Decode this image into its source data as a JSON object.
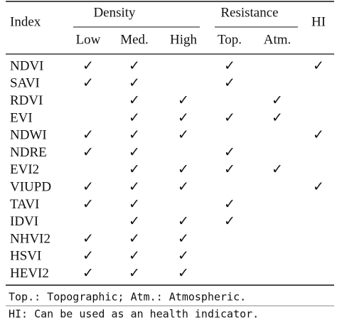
{
  "header": {
    "index": "Index",
    "groups": [
      {
        "label": "Density",
        "columns": [
          "Low",
          "Med.",
          "High"
        ]
      },
      {
        "label": "Resistance",
        "columns": [
          "Top.",
          "Atm."
        ]
      }
    ],
    "hi": "HI"
  },
  "rows": [
    {
      "index": "NDVI",
      "cells": [
        "✓",
        "✓",
        null,
        "✓",
        null,
        "✓"
      ]
    },
    {
      "index": "SAVI",
      "cells": [
        "✓",
        "✓",
        null,
        "✓",
        null,
        null
      ]
    },
    {
      "index": "RDVI",
      "cells": [
        null,
        "✓",
        "✓",
        null,
        "✓",
        null
      ]
    },
    {
      "index": "EVI",
      "cells": [
        null,
        "✓",
        "✓",
        "✓",
        "✓",
        null
      ]
    },
    {
      "index": "NDWI",
      "cells": [
        "✓",
        "✓",
        "✓",
        null,
        null,
        "✓"
      ]
    },
    {
      "index": "NDRE",
      "cells": [
        "✓",
        "✓",
        null,
        "✓",
        null,
        null
      ]
    },
    {
      "index": "EVI2",
      "cells": [
        null,
        "✓",
        "✓",
        "✓",
        "✓",
        null
      ]
    },
    {
      "index": "VIUPD",
      "cells": [
        "✓",
        "✓",
        "✓",
        null,
        null,
        "✓"
      ]
    },
    {
      "index": "TAVI",
      "cells": [
        "✓",
        "✓",
        null,
        "✓",
        null,
        null
      ]
    },
    {
      "index": "IDVI",
      "cells": [
        null,
        "✓",
        "✓",
        "✓",
        null,
        null
      ]
    },
    {
      "index": "NHVI2",
      "cells": [
        "✓",
        "✓",
        "✓",
        null,
        null,
        null
      ]
    },
    {
      "index": "HSVI",
      "cells": [
        "✓",
        "✓",
        "✓",
        null,
        null,
        null
      ]
    },
    {
      "index": "HEVI2",
      "cells": [
        "✓",
        "✓",
        "✓",
        null,
        null,
        null
      ]
    }
  ],
  "notes": [
    "Top.: Topographic; Atm.: Atmospheric.",
    "HI: Can be used as an health indicator."
  ]
}
